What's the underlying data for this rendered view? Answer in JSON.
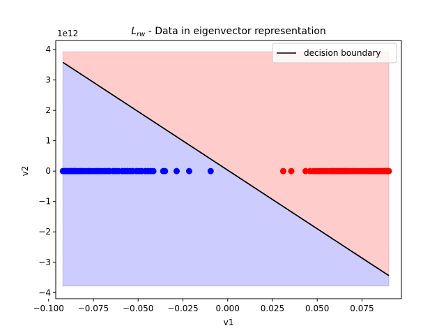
{
  "chart_data": {
    "type": "scatter",
    "title_main": "L",
    "title_sub": "rw",
    "title_rest": " - Data in eigenvector representation",
    "xlabel": "v1",
    "ylabel": "v2",
    "y_offset_label": "1e12",
    "xlim": [
      -0.096,
      0.097
    ],
    "ylim": [
      -4.2,
      4.3
    ],
    "y_scale_exponent": 12,
    "xticks": [
      -0.1,
      -0.075,
      -0.05,
      -0.025,
      0.0,
      0.025,
      0.05,
      0.075
    ],
    "xtick_labels": [
      "−0.100",
      "−0.075",
      "−0.050",
      "−0.025",
      "0.000",
      "0.025",
      "0.050",
      "0.075"
    ],
    "yticks": [
      -4,
      -3,
      -2,
      -1,
      0,
      1,
      2,
      3,
      4
    ],
    "ytick_labels": [
      "−4",
      "−3",
      "−2",
      "−1",
      "0",
      "1",
      "2",
      "3",
      "4"
    ],
    "grid": false,
    "legend_placement": "top-right",
    "legend": [
      "decision boundary"
    ],
    "colors": {
      "class_a": "#0000ff",
      "class_b": "#ff0000",
      "region_a": "#0000ff",
      "region_b": "#ff0000",
      "boundary": "#000000"
    },
    "fill_region": {
      "x": [
        -0.092,
        0.09
      ],
      "y": [
        -3.78,
        3.93
      ]
    },
    "decision_boundary": {
      "x": [
        -0.092,
        0.09
      ],
      "y": [
        3.58,
        -3.44
      ]
    },
    "series": [
      {
        "x": [
          -0.092,
          -0.091,
          -0.0905,
          -0.0895,
          -0.089,
          -0.088,
          -0.0875,
          -0.087,
          -0.086,
          -0.0855,
          -0.085,
          -0.084,
          -0.083,
          -0.082,
          -0.081,
          -0.0795,
          -0.078,
          -0.077,
          -0.0755,
          -0.074,
          -0.073,
          -0.0715,
          -0.07,
          -0.0685,
          -0.067,
          -0.066,
          -0.064,
          -0.0625,
          -0.061,
          -0.059,
          -0.0575,
          -0.056,
          -0.0545,
          -0.053,
          -0.051,
          -0.0495,
          -0.048,
          -0.046,
          -0.0445,
          -0.043,
          -0.0415,
          -0.036,
          -0.035,
          -0.0285,
          -0.0215,
          -0.0095
        ],
        "y": [
          0,
          0,
          0,
          0,
          0,
          0,
          0,
          0,
          0,
          0,
          0,
          0,
          0,
          0,
          0,
          0,
          0,
          0,
          0,
          0,
          0,
          0,
          0,
          0,
          0,
          0,
          0,
          0,
          0,
          0,
          0,
          0,
          0,
          0,
          0,
          0,
          0,
          0,
          0,
          0,
          0,
          0,
          0,
          0,
          0,
          0
        ]
      },
      {
        "x": [
          0.031,
          0.0355,
          0.0435,
          0.046,
          0.048,
          0.0495,
          0.051,
          0.0525,
          0.054,
          0.0555,
          0.057,
          0.058,
          0.059,
          0.06,
          0.061,
          0.062,
          0.063,
          0.064,
          0.065,
          0.066,
          0.067,
          0.0685,
          0.07,
          0.0715,
          0.073,
          0.0745,
          0.076,
          0.0775,
          0.079,
          0.0805,
          0.082,
          0.083,
          0.084,
          0.085,
          0.086,
          0.087,
          0.0875,
          0.088,
          0.0885,
          0.089,
          0.0895,
          0.09
        ],
        "y": [
          0,
          0,
          0,
          0,
          0,
          0,
          0,
          0,
          0,
          0,
          0,
          0,
          0,
          0,
          0,
          0,
          0,
          0,
          0,
          0,
          0,
          0,
          0,
          0,
          0,
          0,
          0,
          0,
          0,
          0,
          0,
          0,
          0,
          0,
          0,
          0,
          0,
          0,
          0,
          0,
          0,
          0
        ]
      }
    ]
  }
}
